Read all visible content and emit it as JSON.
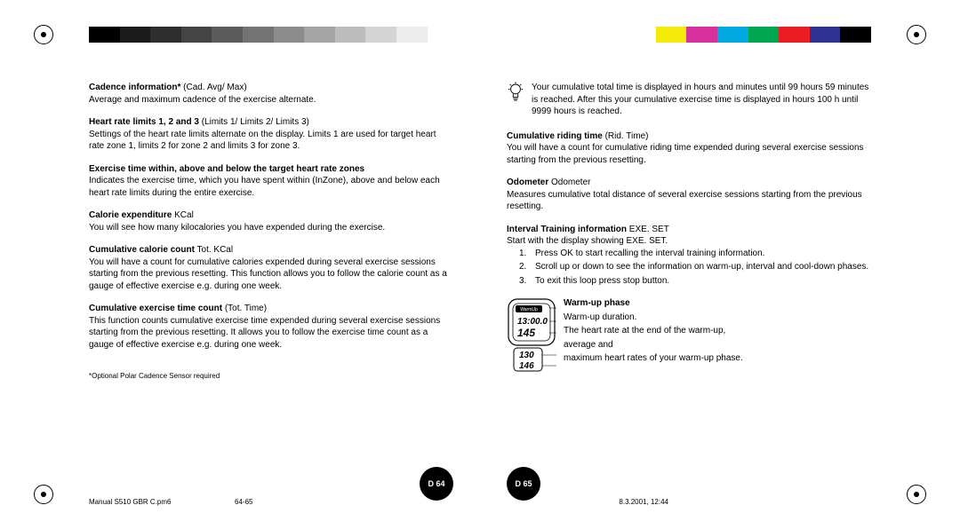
{
  "colorbar": {
    "grays": [
      "#000000",
      "#1a1a1a",
      "#2e2e2e",
      "#444444",
      "#5c5c5c",
      "#747474",
      "#8c8c8c",
      "#a4a4a4",
      "#bcbcbc",
      "#d4d4d4",
      "#ececec",
      "#ffffff"
    ],
    "colors": [
      "#ffffff",
      "#f6ea08",
      "#d930a0",
      "#00a9e0",
      "#00a650",
      "#ec1c24",
      "#2e3192",
      "#000000"
    ]
  },
  "left": {
    "sections": [
      {
        "title": "Cadence information*",
        "suffix": " (Cad. Avg/ Max)",
        "body": "Average and maximum cadence of the exercise alternate."
      },
      {
        "title": "Heart rate limits 1, 2 and 3",
        "suffix": " (Limits 1/ Limits 2/ Limits 3)",
        "body": "Settings of the heart rate limits alternate on the display. Limits 1 are used for target heart rate zone 1, limits 2 for zone 2 and limits 3 for zone 3."
      },
      {
        "title": "Exercise time within, above and below the target heart rate zones",
        "suffix": "",
        "body": "Indicates the exercise time, which you have spent within (InZone), above and below each heart rate limits during the entire exercise."
      },
      {
        "title": "Calorie expenditure",
        "suffix": " KCal",
        "body": "You will see how many kilocalories you have expended during the exercise."
      },
      {
        "title": "Cumulative calorie count",
        "suffix": " Tot. KCal",
        "body": "You will have a count for cumulative calories expended during several exercise sessions starting from the previous resetting. This function allows you to follow the calorie count as a gauge of effective exercise e.g. during one week."
      },
      {
        "title": "Cumulative exercise time count",
        "suffix": " (Tot. Time)",
        "body": "This function counts cumulative exercise time expended during several exercise sessions starting from the previous resetting. It allows you to follow the exercise time count as a gauge of effective exercise e.g. during one week."
      }
    ],
    "footnote": "*Optional Polar Cadence Sensor required",
    "page_no": "D 64"
  },
  "right": {
    "tip": "Your cumulative total time is displayed in hours and minutes until 99 hours 59 minutes is reached. After this your cumulative exercise time is displayed in hours 100 h until 9999 hours is reached.",
    "sections": [
      {
        "title": "Cumulative riding time",
        "suffix": " (Rid. Time)",
        "body": "You will have a count for cumulative riding time expended during several exercise sessions starting from the previous resetting."
      },
      {
        "title": "Odometer",
        "suffix": " Odometer",
        "body": "Measures cumulative total distance of several exercise sessions starting from the previous resetting."
      }
    ],
    "interval": {
      "title": "Interval Training information",
      "suffix": " EXE. SET",
      "intro": "Start with the display showing EXE. SET.",
      "items": [
        "Press OK to start recalling the interval training information.",
        "Scroll up or down to see the information on warm-up, interval and cool-down phases.",
        "To exit this loop press stop button."
      ]
    },
    "warmup": {
      "heading": "Warm-up phase",
      "lines": [
        "Warm-up duration.",
        "The heart rate at the end of the warm-up,",
        "average and",
        "maximum heart rates of your warm-up phase."
      ],
      "watch_labels": {
        "top": "WarmUp",
        "time": "13:00.0",
        "hr": "145",
        "avg": "130",
        "max": "146"
      }
    },
    "page_no": "D 65"
  },
  "footer": {
    "file": "Manual S510 GBR C.pm6",
    "pages": "64-65",
    "timestamp": "8.3.2001, 12:44"
  }
}
